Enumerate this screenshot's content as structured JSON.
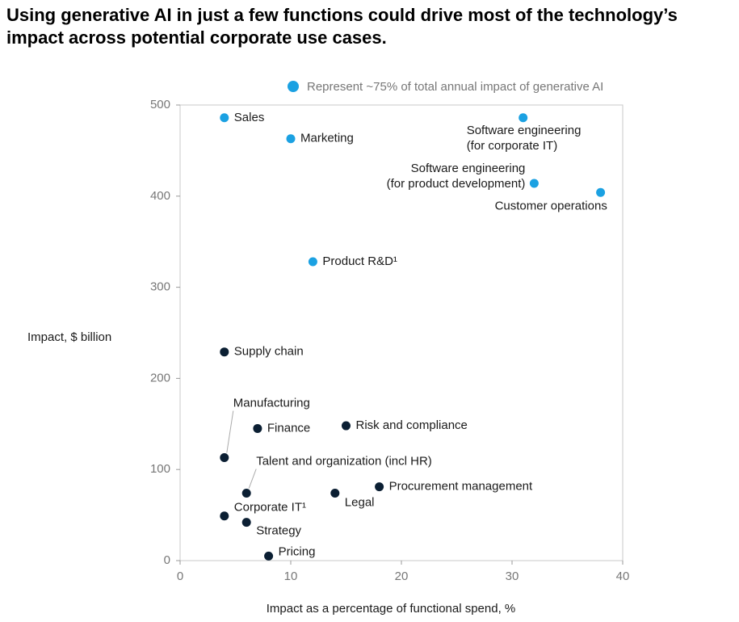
{
  "chart_data": {
    "type": "scatter",
    "title": [
      "Using generative AI in just a few functions could drive most of the technology’s",
      "impact across potential corporate use cases."
    ],
    "x_label": "Impact as a percentage of functional spend, %",
    "y_label": "Impact, $ billion",
    "xlim": [
      0,
      40
    ],
    "xticks": [
      0,
      10,
      20,
      30,
      40
    ],
    "ylim": [
      0,
      500
    ],
    "yticks": [
      0,
      100,
      200,
      300,
      400,
      500
    ],
    "series": [
      {
        "name": "Represent ~75% of total annual impact of generative AI",
        "color": "#1ba1e2",
        "x": [
          4,
          10,
          31,
          32,
          38,
          12
        ],
        "values": [
          486,
          463,
          486,
          414,
          404,
          328
        ],
        "labels": [
          "Sales",
          "Marketing",
          [
            "Software engineering",
            "(for corporate IT)"
          ],
          [
            "Software engineering",
            "(for product development)"
          ],
          "Customer operations",
          "Product R&D¹"
        ]
      },
      {
        "color": "#0b1f33",
        "x": [
          4,
          7,
          15,
          4,
          6,
          14,
          18,
          4,
          6,
          8
        ],
        "values": [
          229,
          145,
          148,
          113,
          74,
          74,
          81,
          49,
          42,
          5
        ],
        "labels": [
          "Supply chain",
          "Finance",
          "Risk and compliance",
          "Manufacturing",
          "Talent and organization (incl HR)",
          "Legal",
          "Procurement management",
          "Corporate IT¹",
          "Strategy",
          "Pricing"
        ]
      }
    ]
  }
}
